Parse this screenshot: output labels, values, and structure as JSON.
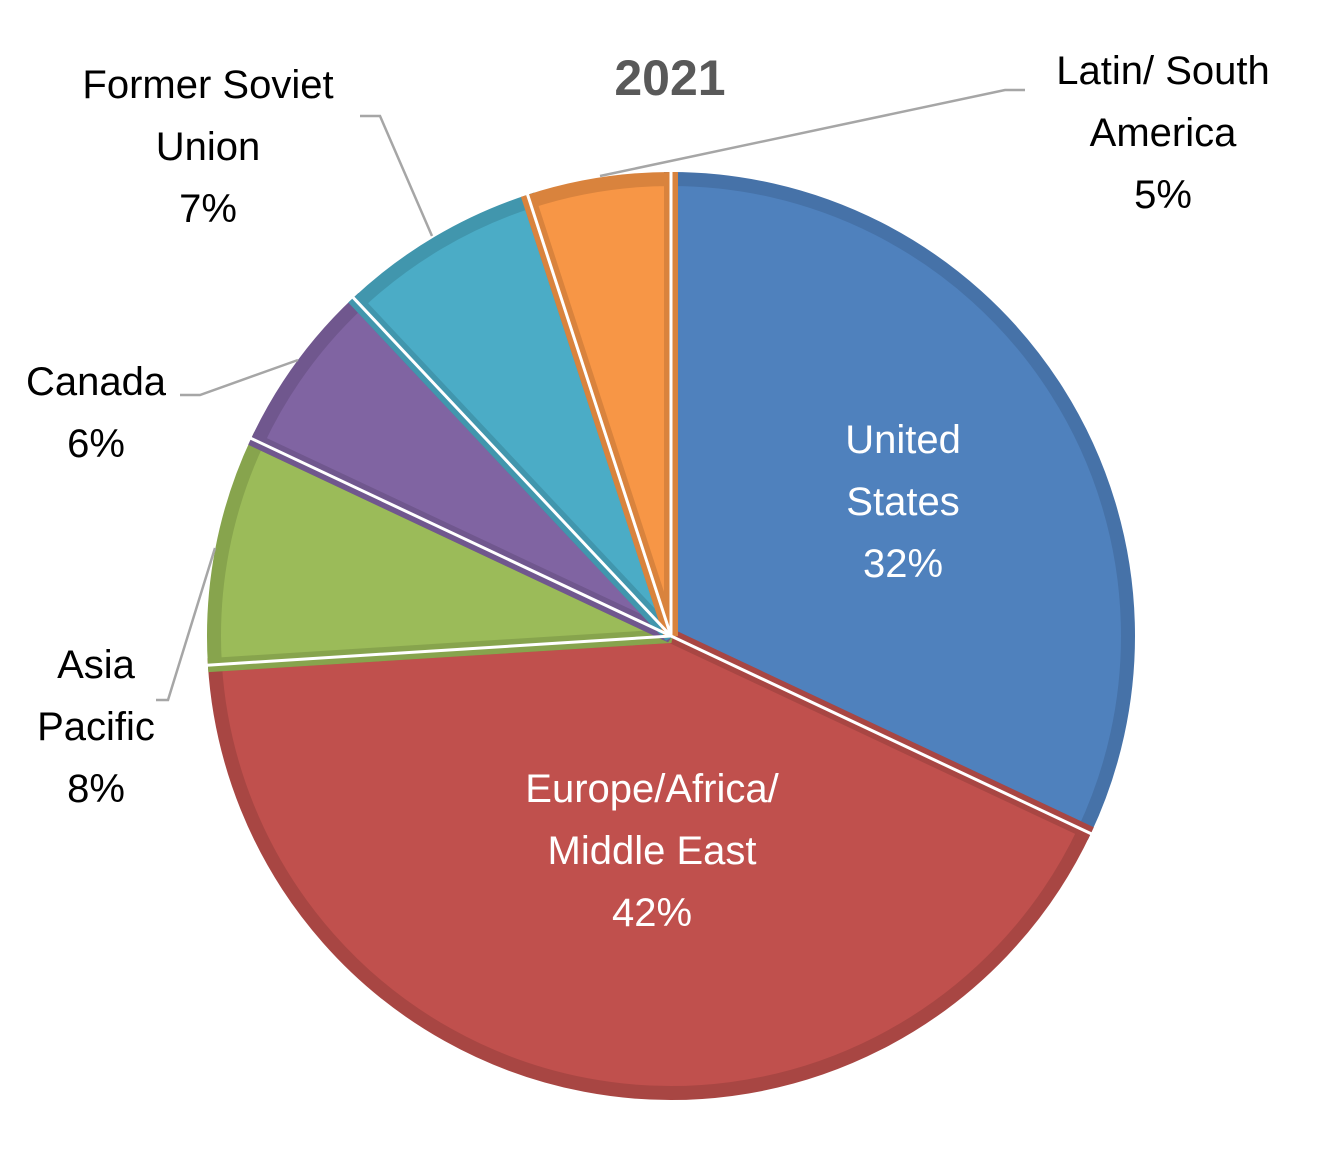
{
  "chart_data": {
    "type": "pie",
    "title": "2021",
    "slices": [
      {
        "label_lines": [
          "United",
          "States"
        ],
        "pct_label": "32%",
        "value": 32,
        "color": "#4f81bd",
        "border": "#4672a8",
        "label_inside": true
      },
      {
        "label_lines": [
          "Europe/Africa/",
          "Middle East"
        ],
        "pct_label": "42%",
        "value": 42,
        "color": "#c0504d",
        "border": "#a84643",
        "label_inside": true
      },
      {
        "label_lines": [
          "Asia",
          "Pacific"
        ],
        "pct_label": "8%",
        "value": 8,
        "color": "#9bbb59",
        "border": "#87a44d",
        "label_inside": false
      },
      {
        "label_lines": [
          "Canada"
        ],
        "pct_label": "6%",
        "value": 6,
        "color": "#8064a2",
        "border": "#70578e",
        "label_inside": false
      },
      {
        "label_lines": [
          "Former Soviet",
          "Union"
        ],
        "pct_label": "7%",
        "value": 7,
        "color": "#4bacc6",
        "border": "#4196ad",
        "label_inside": false
      },
      {
        "label_lines": [
          "Latin/ South",
          "America"
        ],
        "pct_label": "5%",
        "value": 5,
        "color": "#f79646",
        "border": "#d9833d",
        "label_inside": false
      }
    ],
    "start_angle": "12 o'clock",
    "direction": "clockwise",
    "legend": "none"
  }
}
